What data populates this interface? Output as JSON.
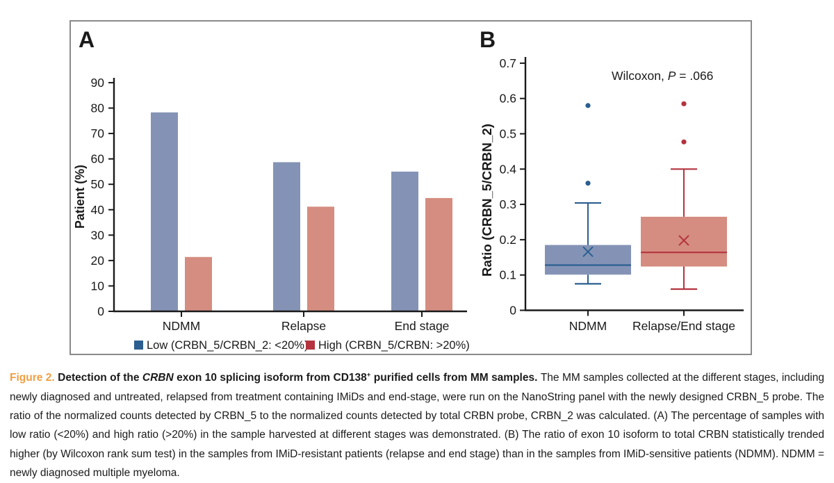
{
  "figure": {
    "panel_a_label": "A",
    "panel_b_label": "B"
  },
  "colors": {
    "bar_low_fill": "#8493b5",
    "bar_high_fill": "#d48d80",
    "line_blue": "#2b5f90",
    "line_red": "#b4333e",
    "axis": "#1a1a1a",
    "frame": "#8a8a8a",
    "caption_label_orange": "#ef9f43"
  },
  "chart_data": [
    {
      "type": "bar",
      "panel": "A",
      "title": "",
      "xlabel": "",
      "ylabel": "Patient (%)",
      "ylim": [
        0,
        90
      ],
      "ytick_step": 10,
      "grid": false,
      "legend_position": "bottom",
      "categories": [
        "NDMM",
        "Relapse",
        "End stage"
      ],
      "series": [
        {
          "name": "Low (CRBN_5/CRBN_2: <20%)",
          "values": [
            78.3,
            58.7,
            55.0
          ],
          "bar_color": "#8493b5",
          "legend_color": "#2b5f90"
        },
        {
          "name": "High (CRBN_5/CRBN: >20%)",
          "values": [
            21.4,
            41.2,
            44.6
          ],
          "bar_color": "#d48d80",
          "legend_color": "#b4333e"
        }
      ]
    },
    {
      "type": "box",
      "panel": "B",
      "title": "",
      "xlabel": "",
      "ylabel": "Ratio (CRBN_5/CRBN_2)",
      "ylim": [
        0,
        0.7
      ],
      "ytick_step": 0.1,
      "grid": false,
      "annotation": {
        "prefix": "Wilcoxon, ",
        "italic_var": "P",
        "suffix": " = .066"
      },
      "categories": [
        "NDMM",
        "Relapse/End stage"
      ],
      "boxes": [
        {
          "name": "NDMM",
          "whisker_low": 0.075,
          "q1": 0.101,
          "median": 0.128,
          "mean": 0.166,
          "q3": 0.185,
          "whisker_high": 0.304,
          "outliers": [
            0.36,
            0.58
          ],
          "fill": "#8493b5",
          "line": "#2b5f90"
        },
        {
          "name": "Relapse/End stage",
          "whisker_low": 0.06,
          "q1": 0.124,
          "median": 0.164,
          "mean": 0.198,
          "q3": 0.265,
          "whisker_high": 0.4,
          "outliers": [
            0.477,
            0.585
          ],
          "fill": "#d48d80",
          "line": "#b4333e"
        }
      ]
    }
  ],
  "caption": {
    "segments": [
      {
        "text": "Figure 2. ",
        "style": "bold-orange"
      },
      {
        "text": "Detection of the ",
        "style": "bold"
      },
      {
        "text": "CRBN",
        "style": "bold-italic"
      },
      {
        "text": " exon 10 splicing isoform from CD138",
        "style": "bold"
      },
      {
        "text": "+",
        "style": "bold-sup"
      },
      {
        "text": " purified cells from MM samples. ",
        "style": "bold"
      },
      {
        "text": "The MM samples collected at the different stages, including newly diagnosed and untreated, relapsed from treatment containing IMiDs and end-stage, were run on the NanoString panel with the newly designed CRBN_5 probe. The ratio of the normalized counts detected by CRBN_5 to the normalized counts detected by total CRBN probe, CRBN_2 was calculated. (A) The percentage of samples with low ratio (<20%) and high ratio (>20%) in the sample harvested at different stages was demonstrated. (B) The ratio of exon 10 isoform to total CRBN statistically trended higher (by Wilcoxon rank sum test) in the samples from IMiD-resistant patients (relapse and end stage) than in the samples from IMiD-sensitive patients (NDMM). NDMM = newly diagnosed multiple myeloma.",
        "style": "regular"
      }
    ]
  }
}
